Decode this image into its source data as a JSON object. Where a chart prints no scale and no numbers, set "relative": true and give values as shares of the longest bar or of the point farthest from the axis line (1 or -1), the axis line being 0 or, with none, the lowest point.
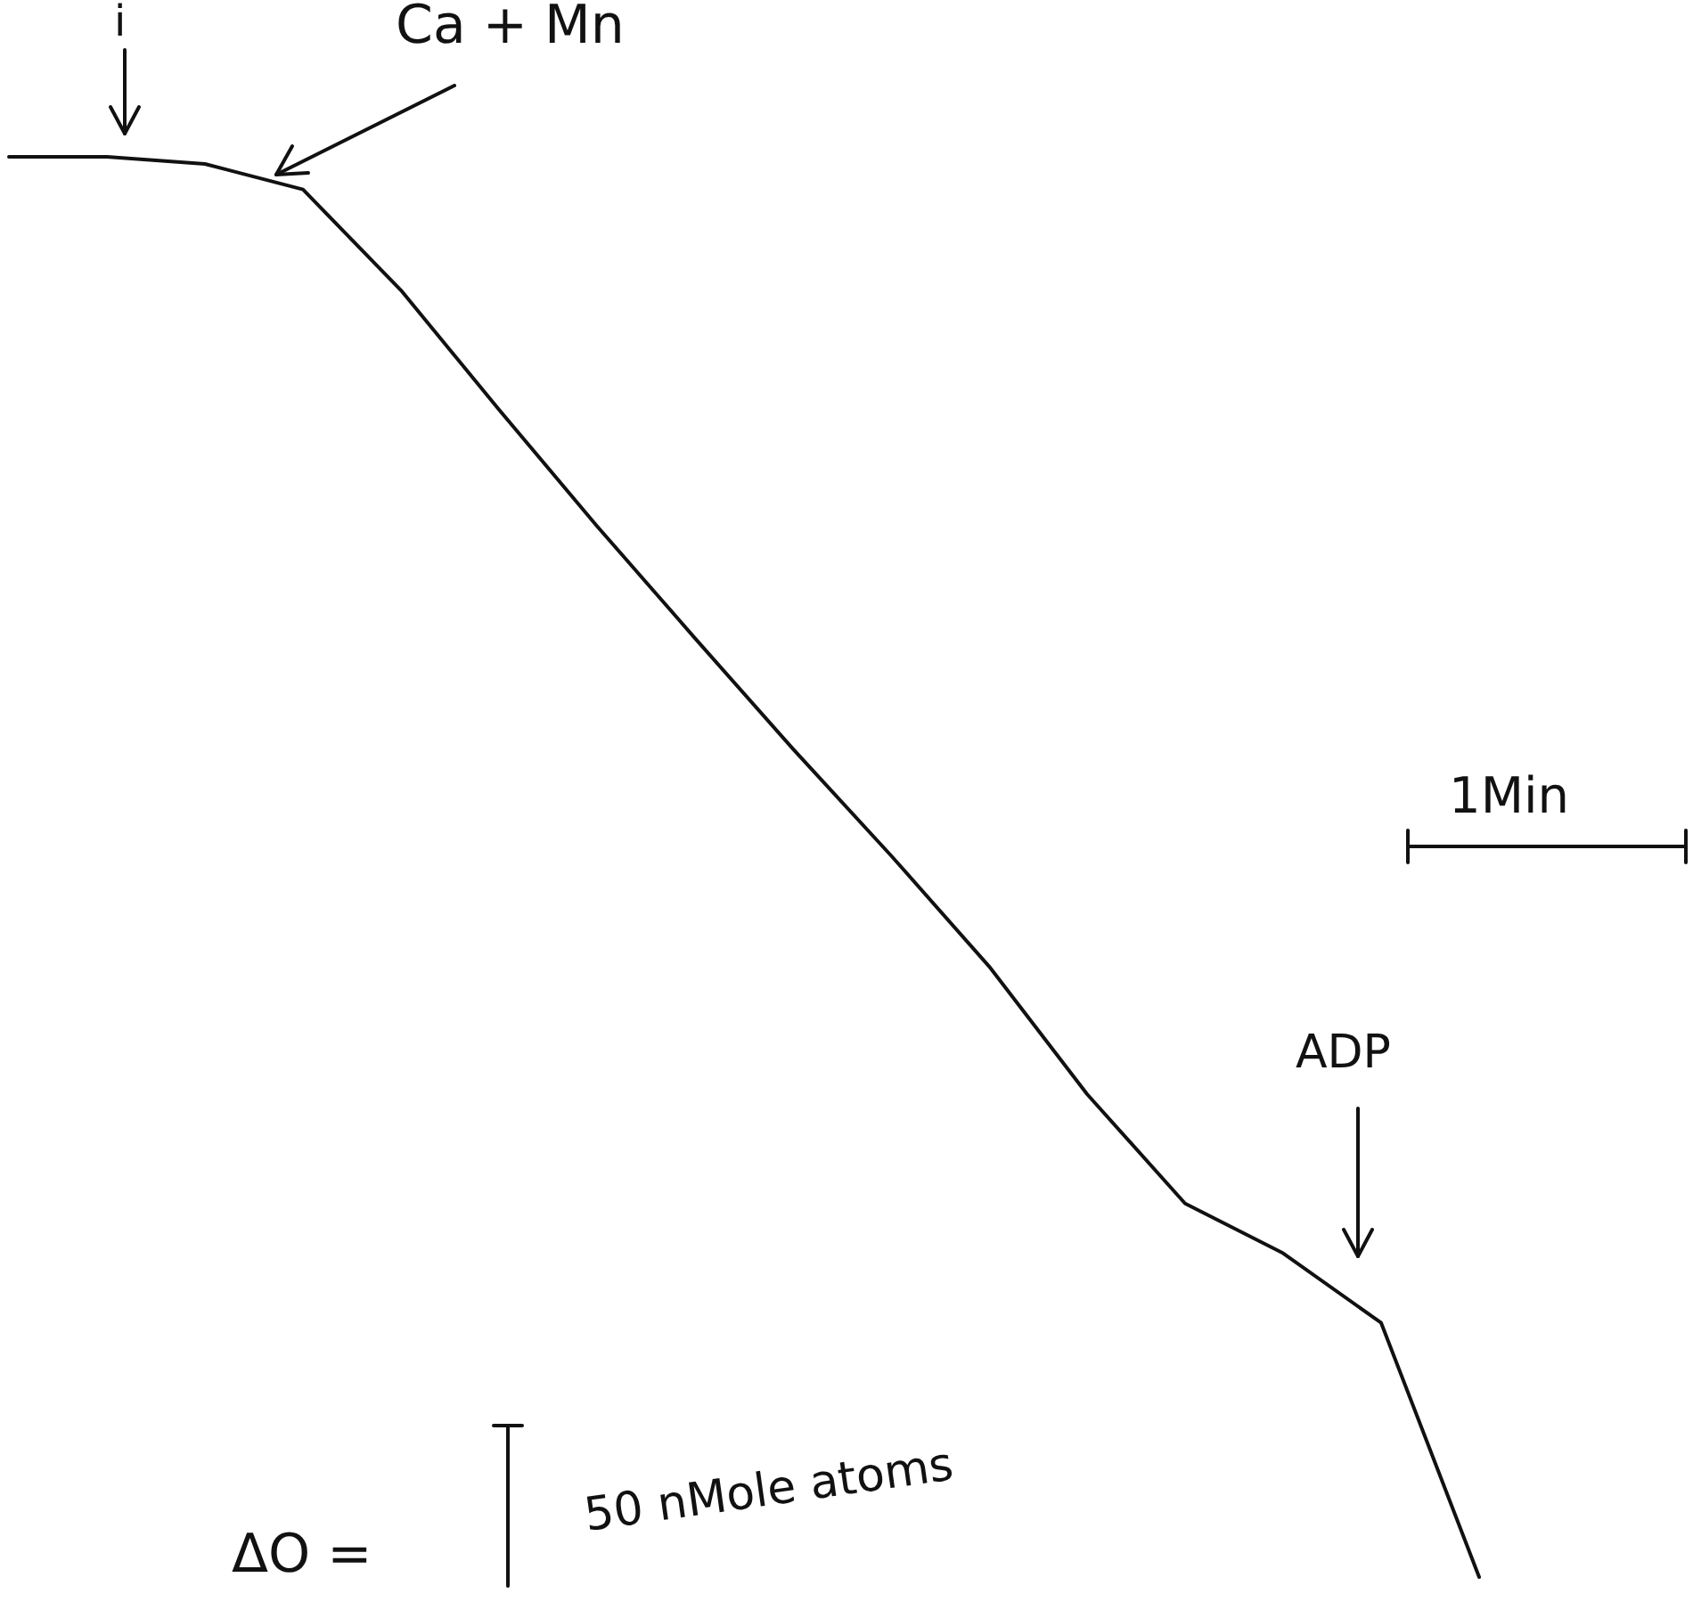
{
  "chart_data": {
    "type": "line",
    "relative": true,
    "color": "#111111",
    "categories": [
      null,
      null,
      null,
      null,
      null,
      null,
      null,
      null,
      null,
      null,
      null,
      null,
      null,
      null,
      null,
      null
    ],
    "values": [
      1,
      1,
      0.995,
      0.977,
      0.906,
      0.822,
      0.74,
      0.661,
      0.583,
      0.508,
      0.43,
      0.34,
      0.263,
      0.228,
      0.179,
      0
    ],
    "annotations": [
      "i",
      "Ca + Mn",
      "ADP",
      "1Min",
      "ΔO =",
      "50 nMole atoms"
    ]
  }
}
